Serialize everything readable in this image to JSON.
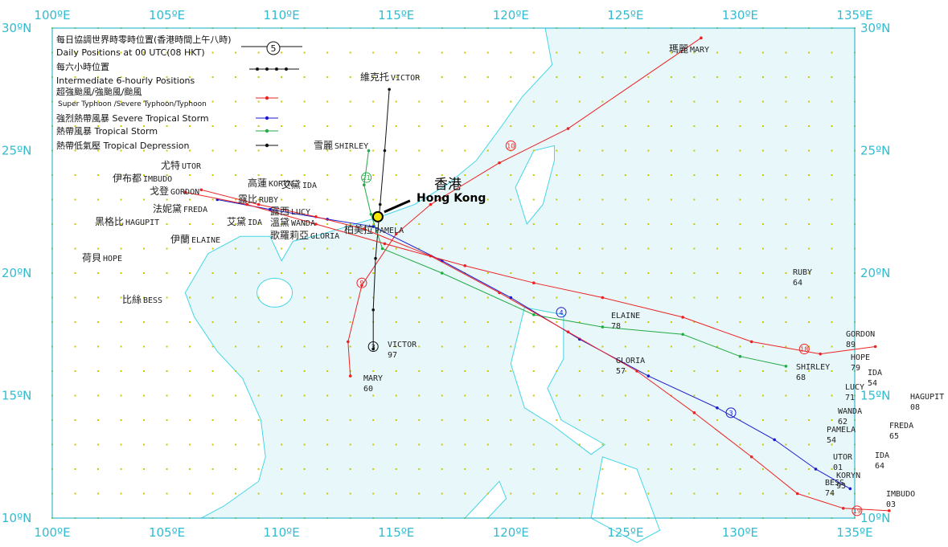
{
  "axes": {
    "lon_labels": [
      "100ºE",
      "105ºE",
      "110ºE",
      "115ºE",
      "120ºE",
      "125ºE",
      "130ºE",
      "135ºE"
    ],
    "lat_labels": [
      "30ºN",
      "25ºN",
      "20ºN",
      "15ºN",
      "10ºN"
    ]
  },
  "legend": {
    "daily_cn": "每日協調世界時零時位置(香港時間上午八時)",
    "daily_en": "Daily Positions at 00 UTC(08 HKT)",
    "daily_symbol": "5",
    "six_cn": "每六小時位置",
    "six_en": "Intermediate 6-hourly Positions",
    "ty_cn": "超強颱風/強颱風/颱風",
    "ty_en": "Super Typhoon /Severe Typhoon/Typhoon",
    "sts_cn": "強烈熱帶風暴",
    "sts_en": "Severe Tropical Storm",
    "ts_cn": "熱帶風暴",
    "ts_en": "Tropical Storm",
    "td_cn": "熱帶低氣壓",
    "td_en": "Tropical Depression"
  },
  "hong_kong": {
    "cn": "香港",
    "en": "Hong Kong"
  },
  "colors": {
    "frame": "#33bbd0",
    "land": "#ffffff",
    "sea": "#e8f7fa",
    "coast": "#44d6e6",
    "grid": "#c8c800",
    "typhoon": "#ee2222",
    "severe_tropical_storm": "#1a1acc",
    "tropical_storm": "#22aa44",
    "tropical_depression": "#111111"
  },
  "start_labels": [
    {
      "id": "mary-start",
      "cn": "瑪麗",
      "en": "MARY"
    },
    {
      "id": "victor-start",
      "cn": "維克托",
      "en": "VICTOR"
    },
    {
      "id": "shirley-start",
      "cn": "雪麗",
      "en": "SHIRLEY"
    },
    {
      "id": "utor-start",
      "cn": "尤特",
      "en": "UTOR"
    },
    {
      "id": "imbudo-start",
      "cn": "伊布都",
      "en": "IMBUDO"
    },
    {
      "id": "gordon-start",
      "cn": "戈登",
      "en": "GORDON"
    },
    {
      "id": "freda-start",
      "cn": "法妮黛",
      "en": "FREDA"
    },
    {
      "id": "hagupit-start",
      "cn": "黑格比",
      "en": "HAGUPIT"
    },
    {
      "id": "elaine-start",
      "cn": "伊蘭",
      "en": "ELAINE"
    },
    {
      "id": "ida-start1",
      "cn": "艾黛",
      "en": "IDA"
    },
    {
      "id": "hope-start",
      "cn": "荷貝",
      "en": "HOPE"
    },
    {
      "id": "bess-start",
      "cn": "比絲",
      "en": "BESS"
    },
    {
      "id": "koryn-start",
      "cn": "高蓮",
      "en": "KORYN"
    },
    {
      "id": "ida-start2",
      "cn": "艾黛",
      "en": "IDA"
    },
    {
      "id": "ruby-start",
      "cn": "露比",
      "en": "RUBY"
    },
    {
      "id": "lucy-start",
      "cn": "露西",
      "en": "LUCY"
    },
    {
      "id": "wanda-start",
      "cn": "溫黛",
      "en": "WANDA"
    },
    {
      "id": "gloria-start",
      "cn": "歌羅莉亞",
      "en": "GLORIA"
    },
    {
      "id": "pamela-start",
      "cn": "柏美拉",
      "en": "PAMELA"
    }
  ],
  "origin_labels": [
    {
      "name": "RUBY",
      "year": "64"
    },
    {
      "name": "GORDON",
      "year": "89"
    },
    {
      "name": "HOPE",
      "year": "79"
    },
    {
      "name": "IDA",
      "year": "54"
    },
    {
      "name": "SHIRLEY",
      "year": "68"
    },
    {
      "name": "LUCY",
      "year": "71"
    },
    {
      "name": "HAGUPIT",
      "year": "08"
    },
    {
      "name": "WANDA",
      "year": "62"
    },
    {
      "name": "FREDA",
      "year": "65"
    },
    {
      "name": "PAMELA",
      "year": "54"
    },
    {
      "name": "IDA",
      "year": "64"
    },
    {
      "name": "UTOR",
      "year": "01"
    },
    {
      "name": "KORYN",
      "year": "93"
    },
    {
      "name": "BESS",
      "year": "74"
    },
    {
      "name": "IMBUDO",
      "year": "03"
    },
    {
      "name": "ELAINE",
      "year": "78"
    },
    {
      "name": "GLORIA",
      "year": "57"
    },
    {
      "name": "VICTOR",
      "year": "97"
    },
    {
      "name": "MARY",
      "year": "60"
    }
  ],
  "tracks": [
    {
      "name": "MARY",
      "color": "typhoon",
      "points": [
        [
          128.3,
          29.6
        ],
        [
          122.5,
          25.9
        ],
        [
          119.5,
          24.5
        ],
        [
          116.5,
          22.8
        ],
        [
          115.0,
          21.6
        ],
        [
          113.5,
          19.5
        ],
        [
          112.9,
          17.2
        ],
        [
          113.0,
          15.8
        ]
      ],
      "days": [
        {
          "lbl": "10",
          "at": [
            120.0,
            25.2
          ]
        },
        {
          "lbl": "9",
          "at": [
            113.5,
            19.6
          ]
        }
      ]
    },
    {
      "name": "VICTOR",
      "color": "tropical_depression",
      "points": [
        [
          114.7,
          27.5
        ],
        [
          114.5,
          25.0
        ],
        [
          114.3,
          22.8
        ],
        [
          114.1,
          20.6
        ],
        [
          114.0,
          18.5
        ],
        [
          114.0,
          16.9
        ]
      ],
      "days": [
        {
          "lbl": "3",
          "at": [
            114.0,
            17.0
          ]
        }
      ]
    },
    {
      "name": "SHIRLEY",
      "color": "tropical_storm",
      "points": [
        [
          113.8,
          25.0
        ],
        [
          113.6,
          23.6
        ],
        [
          113.9,
          22.4
        ],
        [
          114.4,
          21.0
        ],
        [
          117.0,
          20.0
        ],
        [
          121.0,
          18.3
        ],
        [
          124.0,
          17.8
        ],
        [
          127.5,
          17.5
        ],
        [
          130.0,
          16.6
        ],
        [
          132.0,
          16.2
        ]
      ],
      "days": [
        {
          "lbl": "21",
          "at": [
            113.7,
            23.9
          ]
        }
      ]
    },
    {
      "name": "UTOR",
      "color": "severe_tropical_storm",
      "points": [
        [
          107.2,
          23.0
        ],
        [
          109.5,
          22.6
        ],
        [
          112.0,
          22.2
        ],
        [
          114.0,
          21.9
        ],
        [
          117.0,
          20.5
        ],
        [
          120.0,
          19.0
        ],
        [
          123.0,
          17.3
        ],
        [
          126.0,
          15.8
        ],
        [
          129.0,
          14.5
        ],
        [
          131.5,
          13.2
        ],
        [
          133.3,
          12.0
        ],
        [
          134.8,
          11.2
        ]
      ],
      "days": [
        {
          "lbl": "3",
          "at": [
            129.6,
            14.3
          ]
        },
        {
          "lbl": "4",
          "at": [
            122.2,
            18.4
          ]
        }
      ]
    },
    {
      "name": "IMBUDO",
      "color": "typhoon",
      "points": [
        [
          106.5,
          23.4
        ],
        [
          109.0,
          22.8
        ],
        [
          111.5,
          22.3
        ],
        [
          113.6,
          21.8
        ],
        [
          116.5,
          20.7
        ],
        [
          119.5,
          19.2
        ],
        [
          122.5,
          17.6
        ],
        [
          125.5,
          16.0
        ],
        [
          128.0,
          14.3
        ],
        [
          130.5,
          12.5
        ],
        [
          132.5,
          11.0
        ],
        [
          134.5,
          10.4
        ],
        [
          136.5,
          10.3
        ]
      ],
      "days": [
        {
          "lbl": "19",
          "at": [
            135.1,
            10.3
          ]
        }
      ]
    },
    {
      "name": "GORDON",
      "color": "typhoon",
      "points": [
        [
          105.8,
          23.3
        ],
        [
          108.5,
          22.8
        ],
        [
          111.5,
          22.0
        ],
        [
          114.5,
          21.2
        ],
        [
          118.0,
          20.3
        ],
        [
          121.0,
          19.6
        ],
        [
          124.0,
          19.0
        ],
        [
          127.5,
          18.2
        ],
        [
          130.5,
          17.2
        ],
        [
          133.5,
          16.7
        ],
        [
          135.9,
          17.0
        ]
      ],
      "days": [
        {
          "lbl": "18",
          "at": [
            132.8,
            16.9
          ]
        }
      ]
    }
  ],
  "hk_marker": {
    "lon": 114.2,
    "lat": 22.3
  }
}
